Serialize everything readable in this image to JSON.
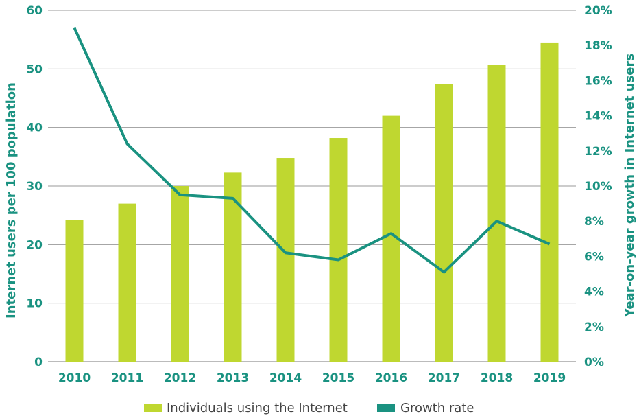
{
  "chart_data": {
    "type": "bar",
    "categories": [
      "2010",
      "2011",
      "2012",
      "2013",
      "2014",
      "2015",
      "2016",
      "2017",
      "2018",
      "2019"
    ],
    "series": [
      {
        "name": "Individuals using the Internet",
        "type": "bar",
        "axis": "left",
        "values": [
          24.2,
          27.0,
          30.0,
          32.3,
          34.8,
          38.2,
          42.0,
          47.4,
          50.7,
          54.5
        ]
      },
      {
        "name": "Growth rate",
        "type": "line",
        "axis": "right",
        "values": [
          19.0,
          12.4,
          9.5,
          9.3,
          6.2,
          5.8,
          7.3,
          5.1,
          8.0,
          6.7
        ]
      }
    ],
    "ylabel": "Internet users per 100 population",
    "ylabel_right": "Year-on-year growth in Internet users",
    "ylim": [
      0,
      60
    ],
    "ylim_right": [
      0,
      20
    ],
    "yticks": [
      "0",
      "10",
      "20",
      "30",
      "40",
      "50",
      "60"
    ],
    "yticks_right": [
      "0%",
      "2%",
      "4%",
      "6%",
      "8%",
      "10%",
      "12%",
      "14%",
      "16%",
      "18%",
      "20%"
    ],
    "grid": true,
    "legend_position": "bottom-center",
    "colors": {
      "bar": "#bfd730",
      "line": "#1a9281",
      "text": "#1a9281",
      "grid": "#999999"
    }
  }
}
